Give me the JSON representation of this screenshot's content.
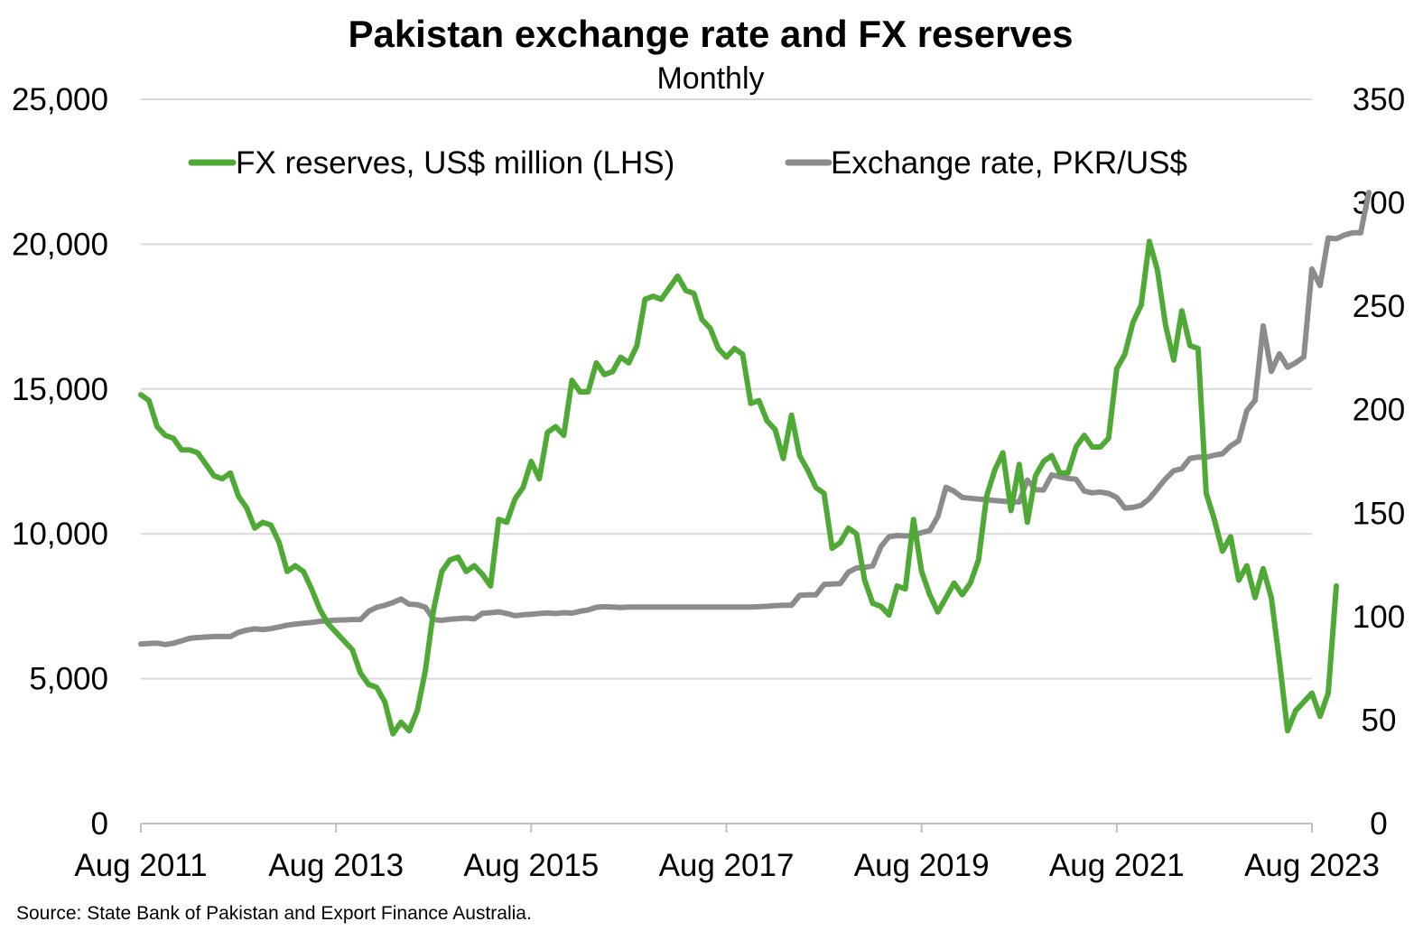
{
  "chart_data": {
    "type": "line",
    "title": "Pakistan exchange rate and FX reserves",
    "subtitle": "Monthly",
    "source": "Source: State Bank of Pakistan and Export Finance Australia.",
    "x_start": "2011-08",
    "x_end": "2023-08",
    "x_tick_labels": [
      "Aug 2011",
      "Aug 2013",
      "Aug 2015",
      "Aug 2017",
      "Aug 2019",
      "Aug 2021",
      "Aug 2023"
    ],
    "y_left": {
      "min": 0,
      "max": 25000,
      "ticks": [
        "0",
        "5,000",
        "10,000",
        "15,000",
        "20,000",
        "25,000"
      ]
    },
    "y_right": {
      "min": 0,
      "max": 350,
      "ticks": [
        "0",
        "50",
        "100",
        "150",
        "200",
        "250",
        "300",
        "350"
      ]
    },
    "grid": "horizontal",
    "legend_position": "top",
    "series": [
      {
        "name": "FX reserves, US$ million (LHS)",
        "axis": "left",
        "color": "#4eaa35",
        "values": [
          14800,
          14600,
          13700,
          13400,
          13300,
          12900,
          12900,
          12800,
          12400,
          12000,
          11900,
          12100,
          11300,
          10900,
          10200,
          10400,
          10300,
          9700,
          8700,
          8900,
          8700,
          8100,
          7400,
          6900,
          6600,
          6300,
          6000,
          5200,
          4800,
          4700,
          4200,
          3100,
          3500,
          3200,
          3900,
          5300,
          7400,
          8700,
          9100,
          9200,
          8700,
          8900,
          8600,
          8200,
          10500,
          10400,
          11200,
          11600,
          12500,
          11900,
          13500,
          13700,
          13400,
          15300,
          14900,
          14900,
          15900,
          15500,
          15600,
          16100,
          15900,
          16500,
          18100,
          18200,
          18100,
          18500,
          18900,
          18400,
          18300,
          17400,
          17100,
          16400,
          16100,
          16400,
          16200,
          14500,
          14600,
          13900,
          13600,
          12600,
          14100,
          12700,
          12200,
          11600,
          11400,
          9500,
          9700,
          10200,
          10000,
          8400,
          7600,
          7500,
          7200,
          8200,
          8100,
          10500,
          8700,
          7900,
          7300,
          7800,
          8300,
          7900,
          8300,
          9100,
          11300,
          12200,
          12800,
          10800,
          12400,
          10400,
          12000,
          12500,
          12700,
          12100,
          12100,
          13000,
          13400,
          13000,
          13000,
          13300,
          15700,
          16200,
          17300,
          17900,
          20100,
          19100,
          17200,
          16000,
          17700,
          16500,
          16400,
          11400,
          10500,
          9400,
          9900,
          8400,
          8900,
          7800,
          8800,
          7800,
          5600,
          3200,
          3900,
          4200,
          4500,
          3700,
          4500,
          8200
        ]
      },
      {
        "name": "Exchange rate, PKR/US$",
        "axis": "right",
        "color": "#8c8c8c",
        "values": [
          86.8,
          87.0,
          87.2,
          86.5,
          87.1,
          88.3,
          89.5,
          89.9,
          90.1,
          90.4,
          90.4,
          90.4,
          92.4,
          93.5,
          94.1,
          93.8,
          94.2,
          95.0,
          95.9,
          96.4,
          96.8,
          97.2,
          97.7,
          98.0,
          98.3,
          98.4,
          98.6,
          98.6,
          102.5,
          104.5,
          105.5,
          106.8,
          108.5,
          106.0,
          105.8,
          104.5,
          98.6,
          98.2,
          98.7,
          99.0,
          99.3,
          98.9,
          101.6,
          101.9,
          102.3,
          101.5,
          100.4,
          100.9,
          101.1,
          101.5,
          101.8,
          101.5,
          101.9,
          101.7,
          102.6,
          103.2,
          104.5,
          104.8,
          104.6,
          104.4,
          104.6,
          104.6,
          104.6,
          104.6,
          104.6,
          104.6,
          104.6,
          104.6,
          104.6,
          104.6,
          104.6,
          104.6,
          104.6,
          104.6,
          104.6,
          104.6,
          104.8,
          105.0,
          105.3,
          105.5,
          105.5,
          110.3,
          110.5,
          110.5,
          115.5,
          115.8,
          115.9,
          121.5,
          123.5,
          123.8,
          124.5,
          133.8,
          138.6,
          139.2,
          139.0,
          139.3,
          140.6,
          141.6,
          148.4,
          162.5,
          160.6,
          157.6,
          157.2,
          156.8,
          156.5,
          156.1,
          155.8,
          155.5,
          155.4,
          166.0,
          161.4,
          161.2,
          168.5,
          167.6,
          166.8,
          166.4,
          160.7,
          159.8,
          160.2,
          159.5,
          157.6,
          152.5,
          152.8,
          153.8,
          157.0,
          161.8,
          166.6,
          170.5,
          171.5,
          176.5,
          177.1,
          177.0,
          178.0,
          178.7,
          182.5,
          185.0,
          199.5,
          204.5,
          240.5,
          218.5,
          227.0,
          220.5,
          222.7,
          225.5,
          268.0,
          260.0,
          283.0,
          282.6,
          284.4,
          285.5,
          285.5,
          305.0
        ]
      }
    ]
  }
}
